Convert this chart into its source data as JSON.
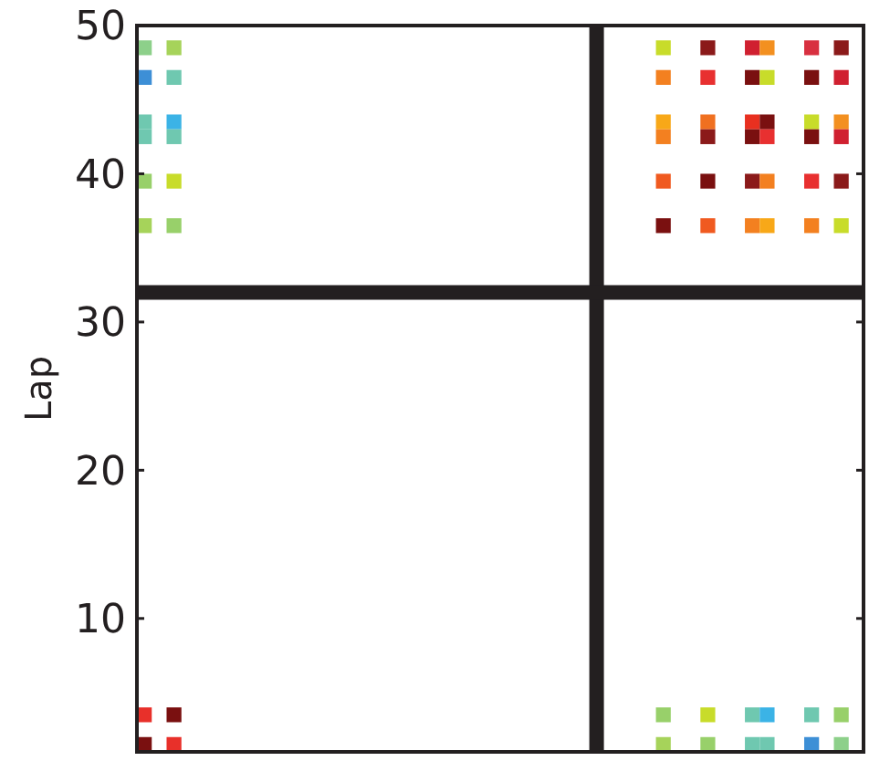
{
  "chart_data": {
    "type": "scatter",
    "ylabel": "Lap",
    "marker": "square",
    "grid": false,
    "tick_labels": "y",
    "categories": [
      null,
      null,
      null,
      null,
      null,
      null,
      null,
      null,
      null,
      null,
      null,
      null,
      null,
      null,
      null,
      null,
      null,
      null,
      null,
      null,
      null,
      null,
      null,
      null,
      null,
      null,
      null,
      null,
      null,
      null,
      null,
      null,
      null,
      null,
      null,
      null,
      null,
      null,
      null,
      null,
      null,
      null,
      null,
      null,
      null,
      null,
      null,
      null,
      null
    ],
    "ylim": [
      1,
      50
    ],
    "yticks": [
      10,
      20,
      30,
      40,
      50
    ],
    "ref_lines": [
      {
        "axis": "y",
        "value": 32,
        "color": "#231f20"
      }
    ],
    "series": [
      {
        "values": [
          48.5,
          null,
          48.5,
          null,
          null,
          null,
          null,
          null,
          null,
          null,
          null,
          null,
          null,
          null,
          null,
          null,
          null,
          null,
          null,
          null,
          null,
          null,
          null,
          null,
          null,
          null,
          null,
          null,
          null,
          null,
          null,
          null,
          null,
          null,
          null,
          48.5,
          null,
          null,
          48.5,
          null,
          null,
          48.5,
          48.5,
          null,
          null,
          48.5,
          null,
          48.5,
          null
        ],
        "colors": [
          "#8dd08a",
          null,
          "#a6d35a",
          null,
          null,
          null,
          null,
          null,
          null,
          null,
          null,
          null,
          null,
          null,
          null,
          null,
          null,
          null,
          null,
          null,
          null,
          null,
          null,
          null,
          null,
          null,
          null,
          null,
          null,
          null,
          null,
          null,
          null,
          null,
          null,
          "#c8dc2a",
          null,
          null,
          "#8b1a1a",
          null,
          null,
          "#d02030",
          "#f39020",
          null,
          null,
          "#d83040",
          null,
          "#8b1a1a",
          null
        ]
      },
      {
        "values": [
          46.5,
          null,
          46.5,
          null,
          null,
          null,
          null,
          null,
          null,
          null,
          null,
          null,
          null,
          null,
          null,
          null,
          null,
          null,
          null,
          null,
          null,
          null,
          null,
          null,
          null,
          null,
          null,
          null,
          null,
          null,
          null,
          null,
          null,
          null,
          null,
          46.5,
          null,
          null,
          46.5,
          null,
          null,
          46.5,
          46.5,
          null,
          null,
          46.5,
          null,
          46.5,
          null
        ],
        "colors": [
          "#3d8fd6",
          null,
          "#6fc8b0",
          null,
          null,
          null,
          null,
          null,
          null,
          null,
          null,
          null,
          null,
          null,
          null,
          null,
          null,
          null,
          null,
          null,
          null,
          null,
          null,
          null,
          null,
          null,
          null,
          null,
          null,
          null,
          null,
          null,
          null,
          null,
          null,
          "#f38020",
          null,
          null,
          "#e83030",
          null,
          null,
          "#7a1010",
          "#c8dc2a",
          null,
          null,
          "#7a1010",
          null,
          "#d02030",
          null
        ]
      },
      {
        "values": [
          43.5,
          null,
          43.5,
          null,
          null,
          null,
          null,
          null,
          null,
          null,
          null,
          null,
          null,
          null,
          null,
          null,
          null,
          null,
          null,
          null,
          null,
          null,
          null,
          null,
          null,
          null,
          null,
          null,
          null,
          null,
          null,
          null,
          null,
          null,
          null,
          43.5,
          null,
          null,
          43.5,
          null,
          null,
          43.5,
          43.5,
          null,
          null,
          43.5,
          null,
          43.5,
          null
        ],
        "colors": [
          "#6fc8b0",
          null,
          "#3bb3e6",
          null,
          null,
          null,
          null,
          null,
          null,
          null,
          null,
          null,
          null,
          null,
          null,
          null,
          null,
          null,
          null,
          null,
          null,
          null,
          null,
          null,
          null,
          null,
          null,
          null,
          null,
          null,
          null,
          null,
          null,
          null,
          null,
          "#f8a818",
          null,
          null,
          "#f07020",
          null,
          null,
          "#e83020",
          "#7a1010",
          null,
          null,
          "#c8dc2a",
          null,
          "#f39020",
          null
        ]
      },
      {
        "values": [
          42.5,
          null,
          42.5,
          null,
          null,
          null,
          null,
          null,
          null,
          null,
          null,
          null,
          null,
          null,
          null,
          null,
          null,
          null,
          null,
          null,
          null,
          null,
          null,
          null,
          null,
          null,
          null,
          null,
          null,
          null,
          null,
          null,
          null,
          null,
          null,
          42.5,
          null,
          null,
          42.5,
          null,
          null,
          42.5,
          42.5,
          null,
          null,
          42.5,
          null,
          42.5,
          null
        ],
        "colors": [
          "#6fc8b0",
          null,
          "#6fc8b0",
          null,
          null,
          null,
          null,
          null,
          null,
          null,
          null,
          null,
          null,
          null,
          null,
          null,
          null,
          null,
          null,
          null,
          null,
          null,
          null,
          null,
          null,
          null,
          null,
          null,
          null,
          null,
          null,
          null,
          null,
          null,
          null,
          "#f38020",
          null,
          null,
          "#8b1a1a",
          null,
          null,
          "#7a1010",
          "#e83030",
          null,
          null,
          "#7a1010",
          null,
          "#d02030",
          null
        ]
      },
      {
        "values": [
          39.5,
          null,
          39.5,
          null,
          null,
          null,
          null,
          null,
          null,
          null,
          null,
          null,
          null,
          null,
          null,
          null,
          null,
          null,
          null,
          null,
          null,
          null,
          null,
          null,
          null,
          null,
          null,
          null,
          null,
          null,
          null,
          null,
          null,
          null,
          null,
          39.5,
          null,
          null,
          39.5,
          null,
          null,
          39.5,
          39.5,
          null,
          null,
          39.5,
          null,
          39.5,
          null
        ],
        "colors": [
          "#98d06a",
          null,
          "#c8dc2a",
          null,
          null,
          null,
          null,
          null,
          null,
          null,
          null,
          null,
          null,
          null,
          null,
          null,
          null,
          null,
          null,
          null,
          null,
          null,
          null,
          null,
          null,
          null,
          null,
          null,
          null,
          null,
          null,
          null,
          null,
          null,
          null,
          "#f05a20",
          null,
          null,
          "#7a1010",
          null,
          null,
          "#8b1a1a",
          "#f38020",
          null,
          null,
          "#e83030",
          null,
          "#8b1a1a",
          null
        ]
      },
      {
        "values": [
          36.5,
          null,
          36.5,
          null,
          null,
          null,
          null,
          null,
          null,
          null,
          null,
          null,
          null,
          null,
          null,
          null,
          null,
          null,
          null,
          null,
          null,
          null,
          null,
          null,
          null,
          null,
          null,
          null,
          null,
          null,
          null,
          null,
          null,
          null,
          null,
          36.5,
          null,
          null,
          36.5,
          null,
          null,
          36.5,
          36.5,
          null,
          null,
          36.5,
          null,
          36.5,
          null
        ],
        "colors": [
          "#a6d35a",
          null,
          "#98d06a",
          null,
          null,
          null,
          null,
          null,
          null,
          null,
          null,
          null,
          null,
          null,
          null,
          null,
          null,
          null,
          null,
          null,
          null,
          null,
          null,
          null,
          null,
          null,
          null,
          null,
          null,
          null,
          null,
          null,
          null,
          null,
          null,
          "#7a1010",
          null,
          null,
          "#f05a20",
          null,
          null,
          "#f38020",
          "#f8a818",
          null,
          null,
          "#f38020",
          null,
          "#c8dc2a",
          null
        ]
      },
      {
        "values": [
          3.5,
          null,
          3.5,
          null,
          null,
          null,
          null,
          null,
          null,
          null,
          null,
          null,
          null,
          null,
          null,
          null,
          null,
          null,
          null,
          null,
          null,
          null,
          null,
          null,
          null,
          null,
          null,
          null,
          null,
          null,
          null,
          null,
          null,
          null,
          null,
          3.5,
          null,
          null,
          3.5,
          null,
          null,
          3.5,
          3.5,
          null,
          null,
          3.5,
          null,
          3.5,
          null
        ],
        "colors": [
          "#e8302a",
          null,
          "#7a1010",
          null,
          null,
          null,
          null,
          null,
          null,
          null,
          null,
          null,
          null,
          null,
          null,
          null,
          null,
          null,
          null,
          null,
          null,
          null,
          null,
          null,
          null,
          null,
          null,
          null,
          null,
          null,
          null,
          null,
          null,
          null,
          null,
          "#98d06a",
          null,
          null,
          "#c8dc2a",
          null,
          null,
          "#6fc8b0",
          "#3bb3e6",
          null,
          null,
          "#6fc8b0",
          null,
          "#98d06a",
          null
        ]
      },
      {
        "values": [
          1.5,
          null,
          1.5,
          null,
          null,
          null,
          null,
          null,
          null,
          null,
          null,
          null,
          null,
          null,
          null,
          null,
          null,
          null,
          null,
          null,
          null,
          null,
          null,
          null,
          null,
          null,
          null,
          null,
          null,
          null,
          null,
          null,
          null,
          null,
          null,
          1.5,
          null,
          null,
          1.5,
          null,
          null,
          1.5,
          1.5,
          null,
          null,
          1.5,
          null,
          1.5,
          null
        ],
        "colors": [
          "#7a1010",
          null,
          "#e8302a",
          null,
          null,
          null,
          null,
          null,
          null,
          null,
          null,
          null,
          null,
          null,
          null,
          null,
          null,
          null,
          null,
          null,
          null,
          null,
          null,
          null,
          null,
          null,
          null,
          null,
          null,
          null,
          null,
          null,
          null,
          null,
          null,
          "#a6d35a",
          null,
          null,
          "#98d06a",
          null,
          null,
          "#6fc8b0",
          "#6fc8b0",
          null,
          null,
          "#3d8fd6",
          null,
          "#8dd08a",
          null
        ]
      }
    ]
  }
}
